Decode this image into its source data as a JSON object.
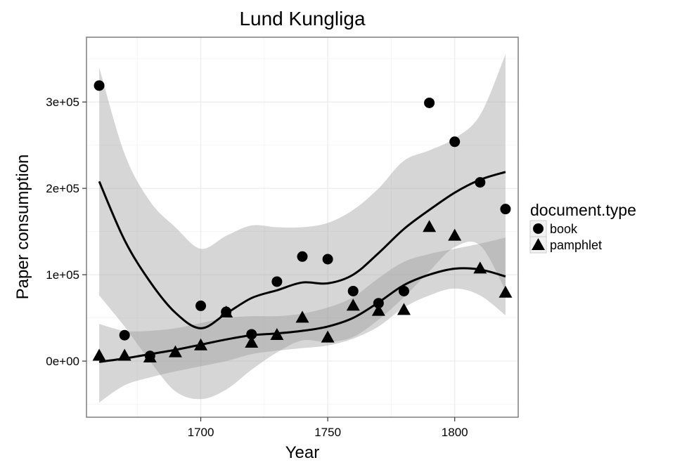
{
  "chart_data": {
    "type": "scatter",
    "title": "Lund Kungliga",
    "xlabel": "Year",
    "ylabel": "Paper consumption",
    "xlim": [
      1655,
      1825
    ],
    "ylim": [
      -65000,
      375000
    ],
    "x_ticks": [
      {
        "value": 1700,
        "label": "1700"
      },
      {
        "value": 1750,
        "label": "1750"
      },
      {
        "value": 1800,
        "label": "1800"
      }
    ],
    "y_ticks": [
      {
        "value": 0,
        "label": "0e+00"
      },
      {
        "value": 100000,
        "label": "1e+05"
      },
      {
        "value": 200000,
        "label": "2e+05"
      },
      {
        "value": 300000,
        "label": "3e+05"
      }
    ],
    "grid": true,
    "legend": {
      "title": "document.type",
      "position": "right",
      "entries": [
        {
          "label": "book",
          "shape": "circle"
        },
        {
          "label": "pamphlet",
          "shape": "triangle"
        }
      ]
    },
    "series": [
      {
        "name": "book",
        "shape": "circle",
        "color": "#000000",
        "points": [
          [
            1660,
            319000
          ],
          [
            1670,
            30000
          ],
          [
            1680,
            6000
          ],
          [
            1700,
            64000
          ],
          [
            1710,
            57000
          ],
          [
            1720,
            31000
          ],
          [
            1730,
            92000
          ],
          [
            1740,
            121000
          ],
          [
            1750,
            118000
          ],
          [
            1760,
            81000
          ],
          [
            1770,
            67000
          ],
          [
            1780,
            81000
          ],
          [
            1790,
            299000
          ],
          [
            1800,
            254000
          ],
          [
            1810,
            207000
          ],
          [
            1820,
            176000
          ]
        ],
        "smooth": [
          [
            1660,
            208000
          ],
          [
            1670,
            140000
          ],
          [
            1680,
            92000
          ],
          [
            1690,
            56000
          ],
          [
            1700,
            38000
          ],
          [
            1710,
            55000
          ],
          [
            1720,
            73000
          ],
          [
            1730,
            82000
          ],
          [
            1740,
            91000
          ],
          [
            1750,
            90000
          ],
          [
            1760,
            100000
          ],
          [
            1770,
            125000
          ],
          [
            1780,
            153000
          ],
          [
            1790,
            175000
          ],
          [
            1800,
            195000
          ],
          [
            1810,
            210000
          ],
          [
            1820,
            219000
          ]
        ],
        "band_upper": [
          [
            1660,
            340000
          ],
          [
            1670,
            240000
          ],
          [
            1680,
            185000
          ],
          [
            1690,
            155000
          ],
          [
            1700,
            130000
          ],
          [
            1710,
            145000
          ],
          [
            1720,
            157000
          ],
          [
            1730,
            155000
          ],
          [
            1740,
            155000
          ],
          [
            1750,
            160000
          ],
          [
            1760,
            175000
          ],
          [
            1770,
            200000
          ],
          [
            1780,
            232000
          ],
          [
            1790,
            244000
          ],
          [
            1800,
            258000
          ],
          [
            1810,
            285000
          ],
          [
            1820,
            355000
          ]
        ],
        "band_lower": [
          [
            1660,
            76000
          ],
          [
            1670,
            40000
          ],
          [
            1680,
            0
          ],
          [
            1690,
            -35000
          ],
          [
            1700,
            -44000
          ],
          [
            1710,
            -33000
          ],
          [
            1720,
            -10000
          ],
          [
            1730,
            10000
          ],
          [
            1740,
            24000
          ],
          [
            1750,
            22000
          ],
          [
            1760,
            28000
          ],
          [
            1770,
            48000
          ],
          [
            1780,
            74000
          ],
          [
            1790,
            104000
          ],
          [
            1800,
            132000
          ],
          [
            1810,
            134000
          ],
          [
            1820,
            82000
          ]
        ]
      },
      {
        "name": "pamphlet",
        "shape": "triangle",
        "color": "#000000",
        "points": [
          [
            1660,
            6000
          ],
          [
            1670,
            6000
          ],
          [
            1680,
            4000
          ],
          [
            1690,
            10000
          ],
          [
            1700,
            18000
          ],
          [
            1710,
            56000
          ],
          [
            1720,
            21000
          ],
          [
            1730,
            30000
          ],
          [
            1740,
            50000
          ],
          [
            1750,
            27000
          ],
          [
            1760,
            64000
          ],
          [
            1770,
            58000
          ],
          [
            1780,
            59000
          ],
          [
            1790,
            155000
          ],
          [
            1800,
            145000
          ],
          [
            1810,
            107000
          ],
          [
            1820,
            79000
          ]
        ],
        "smooth": [
          [
            1660,
            -1000
          ],
          [
            1670,
            3000
          ],
          [
            1680,
            8000
          ],
          [
            1690,
            13000
          ],
          [
            1700,
            19000
          ],
          [
            1710,
            25000
          ],
          [
            1720,
            30000
          ],
          [
            1730,
            32000
          ],
          [
            1740,
            35000
          ],
          [
            1750,
            40000
          ],
          [
            1760,
            50000
          ],
          [
            1770,
            68000
          ],
          [
            1780,
            88000
          ],
          [
            1790,
            100000
          ],
          [
            1800,
            107000
          ],
          [
            1810,
            106000
          ],
          [
            1820,
            98000
          ]
        ],
        "band_upper": [
          [
            1660,
            43000
          ],
          [
            1670,
            35000
          ],
          [
            1680,
            35000
          ],
          [
            1690,
            38000
          ],
          [
            1700,
            44000
          ],
          [
            1710,
            50000
          ],
          [
            1720,
            52000
          ],
          [
            1730,
            52000
          ],
          [
            1740,
            55000
          ],
          [
            1750,
            62000
          ],
          [
            1760,
            74000
          ],
          [
            1770,
            96000
          ],
          [
            1780,
            115000
          ],
          [
            1790,
            124000
          ],
          [
            1800,
            130000
          ],
          [
            1810,
            136000
          ],
          [
            1820,
            143000
          ]
        ],
        "band_lower": [
          [
            1660,
            -48000
          ],
          [
            1670,
            -28000
          ],
          [
            1680,
            -19000
          ],
          [
            1690,
            -12000
          ],
          [
            1700,
            -6000
          ],
          [
            1710,
            0
          ],
          [
            1720,
            8000
          ],
          [
            1730,
            12000
          ],
          [
            1740,
            15000
          ],
          [
            1750,
            18000
          ],
          [
            1760,
            26000
          ],
          [
            1770,
            40000
          ],
          [
            1780,
            62000
          ],
          [
            1790,
            76000
          ],
          [
            1800,
            84000
          ],
          [
            1810,
            76000
          ],
          [
            1820,
            53000
          ]
        ]
      }
    ]
  }
}
